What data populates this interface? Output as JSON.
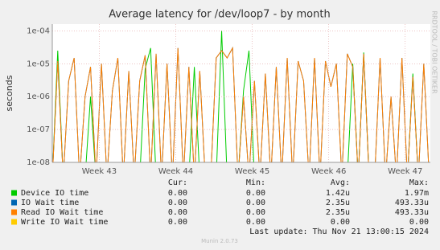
{
  "chart_data": {
    "type": "line",
    "title": "Average latency for /dev/loop7 - by month",
    "ylabel": "seconds",
    "log_scale": true,
    "grid": true,
    "x": [
      0,
      0.5,
      1,
      1.5,
      2,
      2.5,
      3,
      3.5,
      4,
      4.5,
      5,
      5.5,
      6,
      6.5,
      7,
      7.5,
      8,
      8.5,
      9,
      9.5,
      10,
      10.5,
      11,
      11.5,
      12,
      12.5,
      13,
      13.5,
      14,
      14.5,
      15,
      15.5,
      16,
      16.5,
      17,
      17.5,
      18,
      18.5,
      19,
      19.5,
      20,
      20.5,
      21,
      21.5,
      22,
      22.5,
      23,
      23.5,
      24,
      24.5,
      25,
      25.5,
      26,
      26.5,
      27,
      27.5,
      28,
      28.5,
      29,
      29.5,
      30,
      30.5,
      31,
      31.5,
      32,
      32.5,
      33,
      33.5,
      34,
      34.5
    ],
    "xlim": [
      0,
      34.6
    ],
    "xticks": [
      {
        "value": 4.3,
        "label": "Week 43"
      },
      {
        "value": 11.3,
        "label": "Week 44"
      },
      {
        "value": 18.3,
        "label": "Week 45"
      },
      {
        "value": 25.3,
        "label": "Week 46"
      },
      {
        "value": 32.3,
        "label": "Week 47"
      }
    ],
    "ylim": [
      1e-08,
      0.00016
    ],
    "yticks": [
      {
        "value": 1e-08,
        "label": "1e-08"
      },
      {
        "value": 1e-07,
        "label": "1e-07"
      },
      {
        "value": 1e-06,
        "label": "1e-06"
      },
      {
        "value": 1e-05,
        "label": "1e-05"
      },
      {
        "value": 0.0001,
        "label": "1e-04"
      }
    ],
    "series": [
      {
        "name": "Device IO time",
        "color": "#00cc00",
        "values": [
          0,
          2.5e-05,
          0,
          0,
          0,
          0,
          0,
          1e-06,
          0,
          0,
          0,
          0,
          0,
          0,
          0,
          0,
          0,
          7e-06,
          3e-05,
          0,
          0,
          0,
          0,
          0,
          0,
          0,
          8e-06,
          0,
          0,
          0,
          0,
          0.0001,
          0,
          0,
          0,
          1.5e-06,
          2.5e-05,
          0,
          0,
          0,
          0,
          0,
          0,
          0,
          0,
          0,
          0,
          0,
          0,
          0,
          0,
          0,
          0,
          0,
          0,
          1e-05,
          0,
          2.2e-05,
          0,
          0,
          0,
          0,
          0,
          0,
          0,
          0,
          5e-06,
          0,
          0,
          0
        ]
      },
      {
        "name": "IO Wait time",
        "color": "#0066b3",
        "values": [
          0,
          1.2e-05,
          0,
          3e-06,
          1.5e-05,
          0,
          1e-06,
          8e-06,
          0,
          1e-05,
          0,
          1.5e-06,
          1.5e-05,
          0,
          6e-06,
          0,
          3e-06,
          1.8e-05,
          0,
          2e-05,
          0,
          1e-05,
          0,
          3e-05,
          0,
          8e-06,
          0,
          6e-06,
          0,
          0,
          1.5e-05,
          2.5e-05,
          1.5e-05,
          3e-05,
          0,
          1e-06,
          0,
          3e-06,
          0,
          5e-06,
          0,
          8e-06,
          0,
          1.5e-05,
          0,
          1.2e-05,
          3e-06,
          0,
          1.5e-05,
          0,
          1.2e-05,
          2e-06,
          1e-05,
          0,
          2e-05,
          8e-06,
          0,
          2e-05,
          0,
          0,
          1.5e-05,
          0,
          1e-06,
          0,
          1.5e-05,
          0,
          4e-06,
          0,
          1e-05,
          0
        ]
      },
      {
        "name": "Read IO Wait time",
        "color": "#ff8000",
        "values": [
          0,
          1.2e-05,
          0,
          3e-06,
          1.5e-05,
          0,
          1e-06,
          8e-06,
          0,
          1e-05,
          0,
          1.5e-06,
          1.5e-05,
          0,
          6e-06,
          0,
          3e-06,
          1.8e-05,
          0,
          2e-05,
          0,
          1e-05,
          0,
          3e-05,
          0,
          8e-06,
          0,
          6e-06,
          0,
          0,
          1.5e-05,
          2.5e-05,
          1.5e-05,
          3e-05,
          0,
          1e-06,
          0,
          3e-06,
          0,
          5e-06,
          0,
          8e-06,
          0,
          1.5e-05,
          0,
          1.2e-05,
          3e-06,
          0,
          1.5e-05,
          0,
          1.2e-05,
          2e-06,
          1e-05,
          0,
          2e-05,
          8e-06,
          0,
          2e-05,
          0,
          0,
          1.5e-05,
          0,
          1e-06,
          0,
          1.5e-05,
          0,
          4e-06,
          0,
          1e-05,
          0
        ]
      },
      {
        "name": "Write IO Wait time",
        "color": "#ffcc00",
        "values": [
          0,
          0,
          0,
          0,
          0,
          0,
          0,
          0,
          0,
          0,
          0,
          0,
          0,
          0,
          0,
          0,
          0,
          0,
          0,
          0,
          0,
          0,
          0,
          0,
          0,
          0,
          0,
          0,
          0,
          0,
          0,
          0,
          0,
          0,
          0,
          0,
          0,
          0,
          0,
          0,
          0,
          0,
          0,
          0,
          0,
          0,
          0,
          0,
          0,
          0,
          0,
          0,
          0,
          0,
          0,
          0,
          0,
          0,
          0,
          0,
          0,
          0,
          0,
          0,
          0,
          0,
          0,
          0,
          0,
          0
        ]
      }
    ]
  },
  "legend_stats": {
    "headers": [
      "Cur:",
      "Min:",
      "Avg:",
      "Max:"
    ],
    "rows": [
      [
        "0.00",
        "0.00",
        "1.42u",
        "1.97m"
      ],
      [
        "0.00",
        "0.00",
        "2.35u",
        "493.33u"
      ],
      [
        "0.00",
        "0.00",
        "2.35u",
        "493.33u"
      ],
      [
        "0.00",
        "0.00",
        "0.00",
        "0.00"
      ]
    ]
  },
  "last_update": "Last update: Thu Nov 21 13:00:15 2024",
  "side_text": "RRDTOOL / TOBI OETIKER",
  "footer": "Munin 2.0.73"
}
